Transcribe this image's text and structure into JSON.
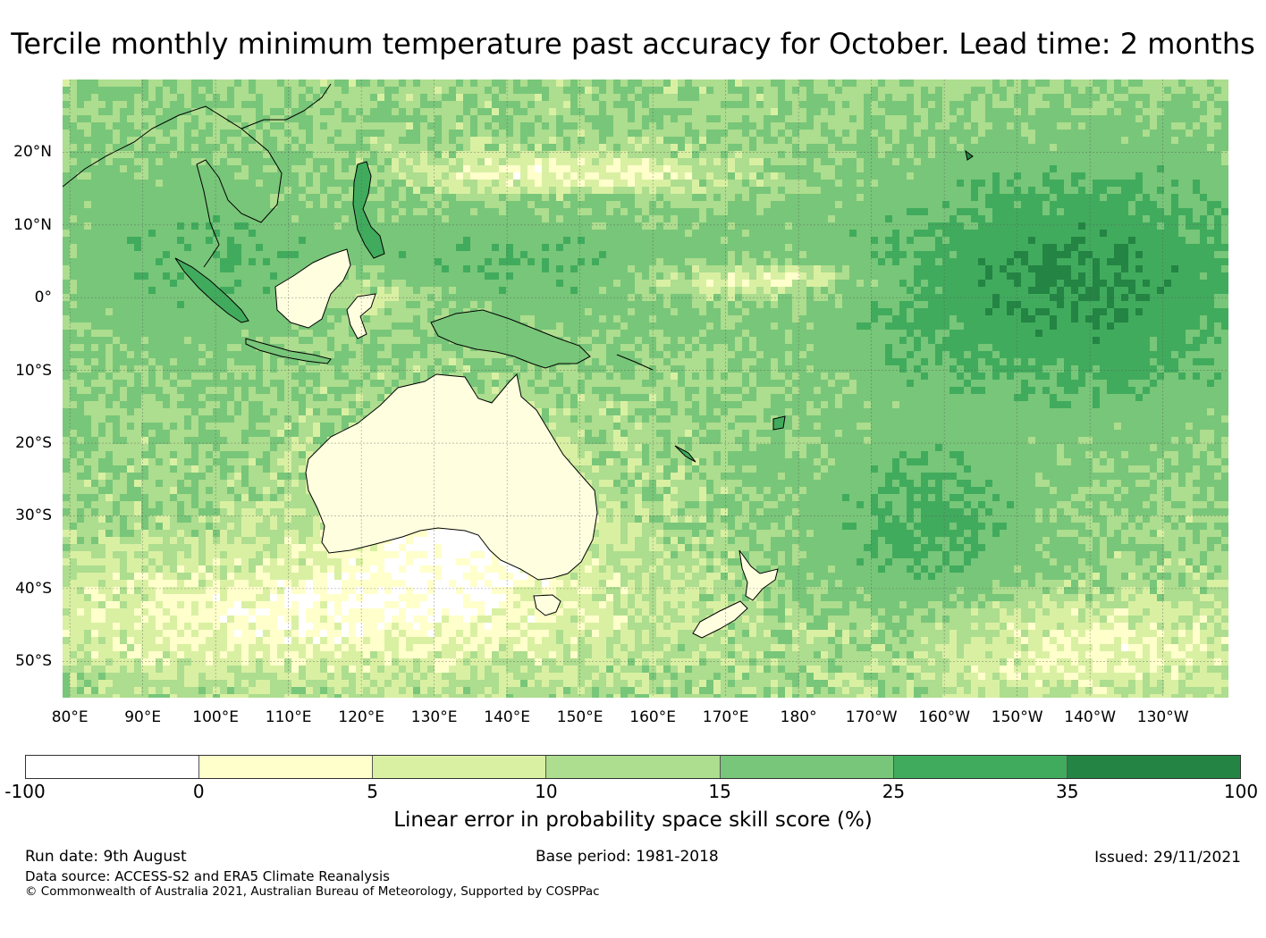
{
  "title": "Tercile monthly minimum temperature past accuracy for October. Lead time: 2 months",
  "map": {
    "lat_labels": [
      "20°N",
      "10°N",
      "0°",
      "10°S",
      "20°S",
      "30°S",
      "40°S",
      "50°S"
    ],
    "lon_labels": [
      "80°E",
      "90°E",
      "100°E",
      "110°E",
      "120°E",
      "130°E",
      "140°E",
      "150°E",
      "160°E",
      "170°E",
      "180°",
      "170°W",
      "160°W",
      "150°W",
      "140°W",
      "130°W"
    ],
    "lat_range": [
      -55,
      30
    ],
    "lon_range": [
      79,
      239
    ],
    "coastline_color": "#000000",
    "gridlines": true
  },
  "colorbar": {
    "bins": [
      "-100",
      "0",
      "5",
      "10",
      "15",
      "25",
      "35",
      "100"
    ],
    "colors": [
      "#ffffff",
      "#ffffcc",
      "#d9f0a3",
      "#addd8e",
      "#78c679",
      "#41ab5d",
      "#238443"
    ],
    "label": "Linear error in probability space skill score (%)"
  },
  "footer": {
    "run_date": "Run date: 9th August",
    "base_period": "Base period: 1981-2018",
    "issued": "Issued: 29/11/2021",
    "data_source": "Data source: ACCESS-S2 and ERA5 Climate Reanalysis",
    "copyright": "© Commonwealth of Australia 2021, Australian Bureau of Meteorology, Supported by COSPPac"
  }
}
